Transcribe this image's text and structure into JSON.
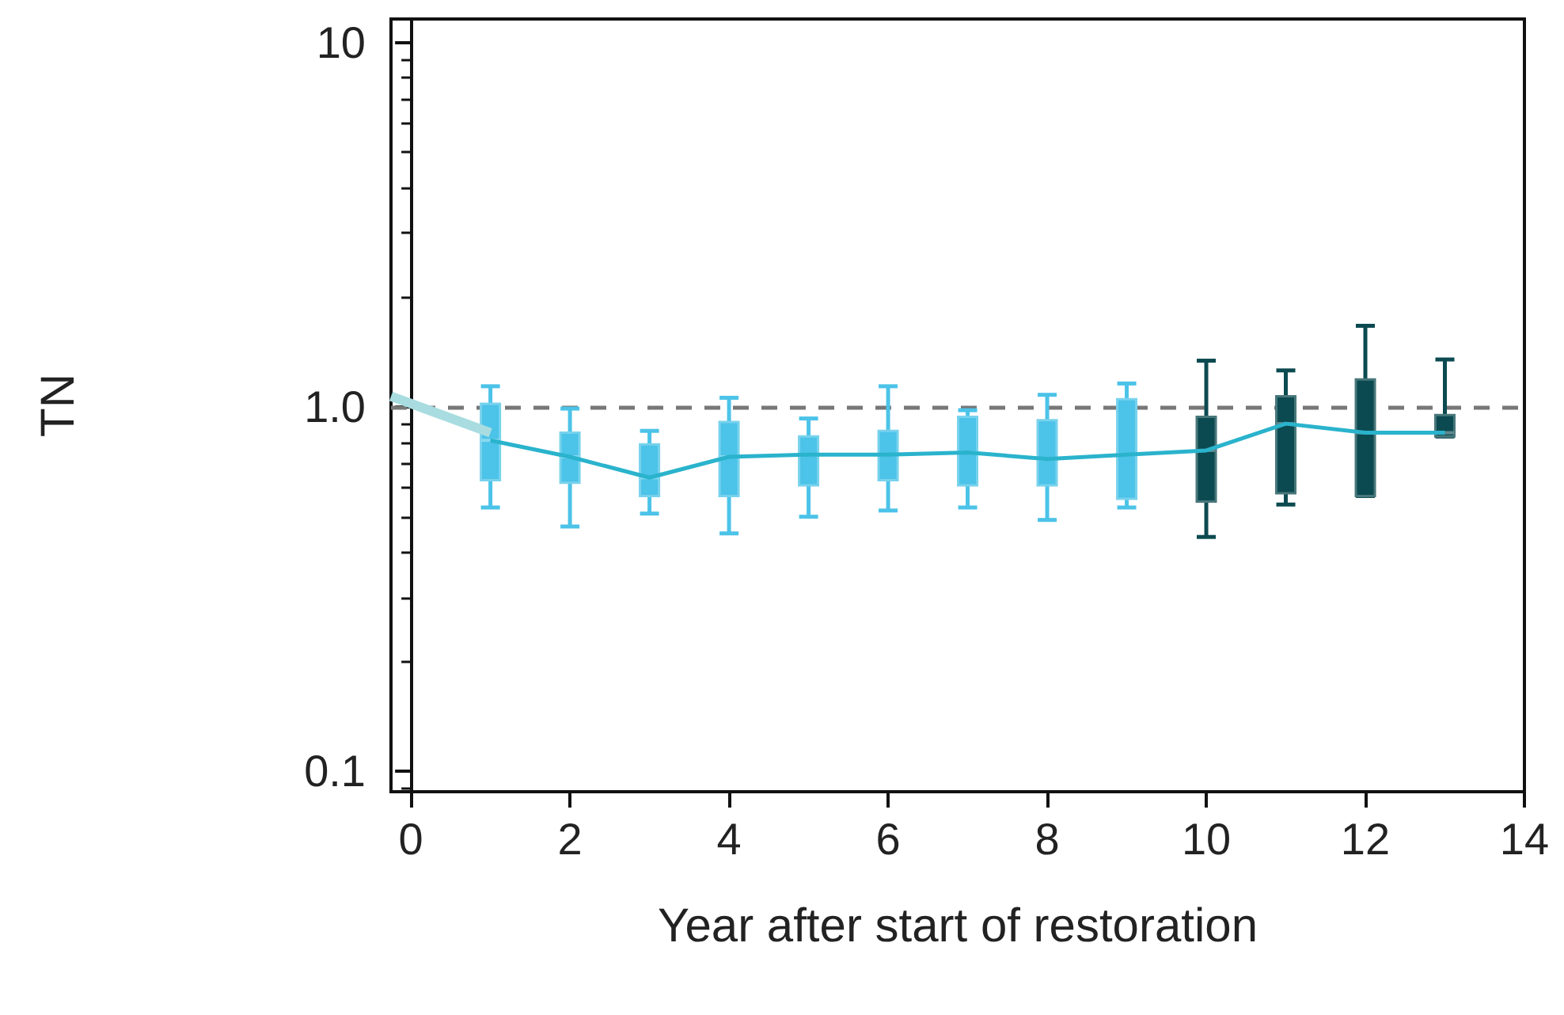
{
  "chart_data": {
    "type": "box",
    "xlabel": "Year after start of restoration",
    "ylabel": "TN",
    "xlim": [
      -0.25,
      14
    ],
    "xticks": [
      0,
      2,
      4,
      6,
      8,
      10,
      12,
      14
    ],
    "ylim": [
      0.088,
      11.6
    ],
    "yticks": [
      {
        "value": 0.1,
        "label": "0.1"
      },
      {
        "value": 1,
        "label": "1.0"
      },
      {
        "value": 10,
        "label": "10"
      }
    ],
    "log": "y",
    "grid": false,
    "ref_lines": [
      {
        "axis": "y",
        "value": 1,
        "label": null,
        "color": "#777777",
        "line_style": "dashed"
      }
    ],
    "series": [
      {
        "type": "box",
        "color": "#4cc3e8",
        "x": [
          1,
          2,
          3,
          4,
          5,
          6,
          7,
          8,
          9
        ],
        "boxes": [
          {
            "low": 0.53,
            "q1": 0.63,
            "median": 0.81,
            "q3": 1.02,
            "high": 1.14
          },
          {
            "low": 0.47,
            "q1": 0.62,
            "median": 0.73,
            "q3": 0.85,
            "high": 0.99
          },
          {
            "low": 0.51,
            "q1": 0.57,
            "median": 0.64,
            "q3": 0.79,
            "high": 0.86
          },
          {
            "low": 0.45,
            "q1": 0.57,
            "median": 0.73,
            "q3": 0.91,
            "high": 1.06
          },
          {
            "low": 0.5,
            "q1": 0.61,
            "median": 0.74,
            "q3": 0.83,
            "high": 0.93
          },
          {
            "low": 0.52,
            "q1": 0.63,
            "median": 0.74,
            "q3": 0.86,
            "high": 1.14
          },
          {
            "low": 0.53,
            "q1": 0.61,
            "median": 0.75,
            "q3": 0.94,
            "high": 0.98
          },
          {
            "low": 0.49,
            "q1": 0.61,
            "median": 0.72,
            "q3": 0.92,
            "high": 1.08
          },
          {
            "low": 0.53,
            "q1": 0.56,
            "median": 0.74,
            "q3": 1.05,
            "high": 1.16
          }
        ]
      },
      {
        "type": "box",
        "color": "#0b4a50",
        "x": [
          10,
          11,
          12,
          13
        ],
        "boxes": [
          {
            "low": 0.44,
            "q1": 0.55,
            "median": 0.76,
            "q3": 0.94,
            "high": 1.34
          },
          {
            "low": 0.54,
            "q1": 0.58,
            "median": 0.9,
            "q3": 1.07,
            "high": 1.26
          },
          {
            "low": 0.57,
            "q1": 0.57,
            "median": 0.85,
            "q3": 1.19,
            "high": 1.67
          },
          {
            "low": 0.83,
            "q1": 0.83,
            "median": 0.85,
            "q3": 0.95,
            "high": 1.35
          }
        ]
      },
      {
        "type": "line",
        "color": "#2ab3cc",
        "marker": "none",
        "x": [
          1,
          2,
          3,
          4,
          5,
          6,
          7,
          8,
          9,
          10,
          11,
          12,
          13
        ],
        "values": [
          0.81,
          0.73,
          0.64,
          0.73,
          0.74,
          0.74,
          0.75,
          0.72,
          0.74,
          0.76,
          0.9,
          0.85,
          0.85
        ]
      },
      {
        "type": "line",
        "color": "#a8dce0",
        "marker": "none",
        "x": [
          -0.25,
          1
        ],
        "values": [
          1.07,
          0.85
        ]
      }
    ]
  }
}
